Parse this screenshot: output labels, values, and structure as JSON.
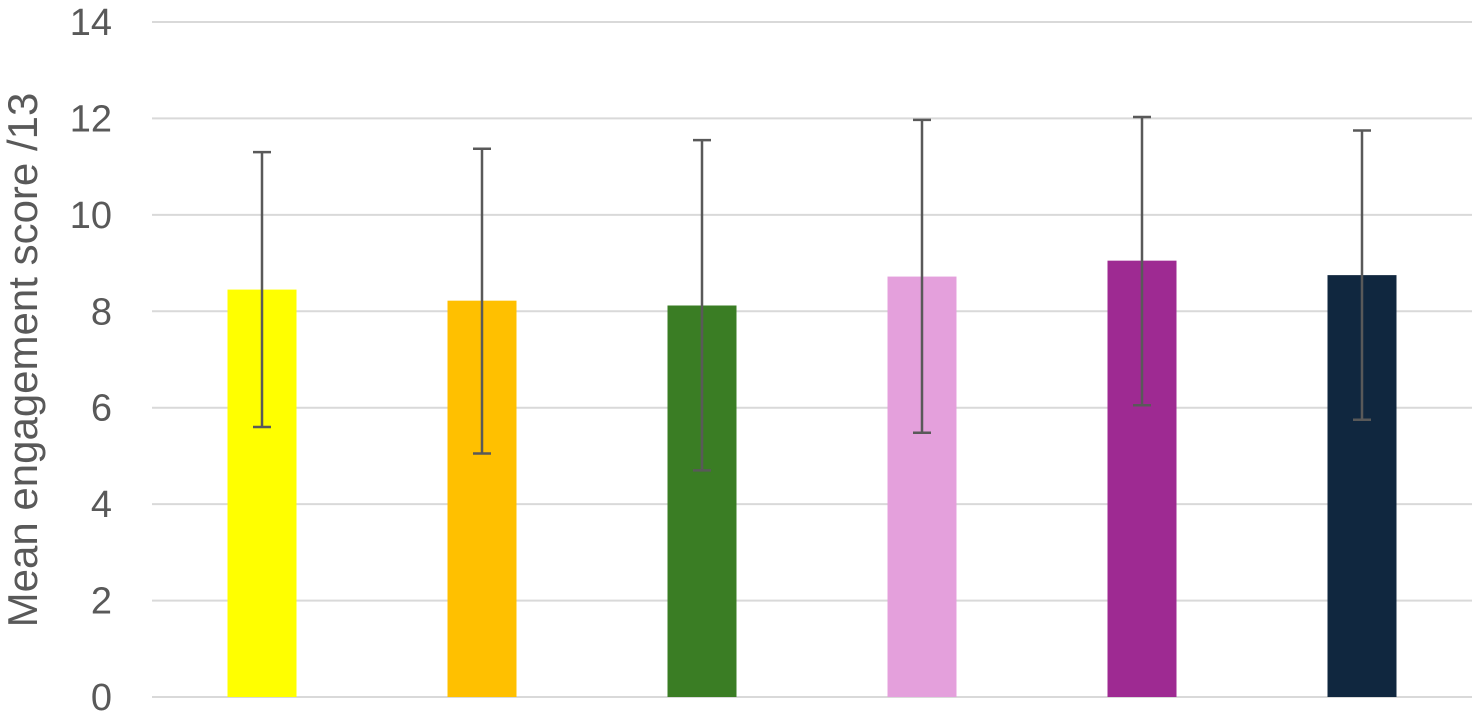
{
  "chart_data": {
    "type": "bar",
    "title": "",
    "xlabel": "",
    "ylabel": "Mean engagement score /13",
    "ylim": [
      0,
      14
    ],
    "yticks": [
      0,
      2,
      4,
      6,
      8,
      10,
      12,
      14
    ],
    "grid": true,
    "series": [
      {
        "values": [
          8.45,
          8.22,
          8.12,
          8.72,
          9.05,
          8.75
        ],
        "error_low": [
          5.6,
          5.05,
          4.7,
          5.48,
          6.05,
          5.75
        ],
        "error_high": [
          11.3,
          11.37,
          11.55,
          11.97,
          12.03,
          11.75
        ],
        "colors": [
          "#ffff00",
          "#ffc000",
          "#3a7d24",
          "#e4a0dc",
          "#9e2a92",
          "#10273f"
        ]
      }
    ]
  }
}
